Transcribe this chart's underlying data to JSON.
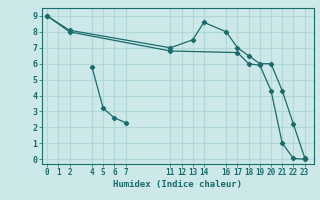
{
  "xlabel": "Humidex (Indice chaleur)",
  "ylabel": "",
  "bg_color": "#cce8e8",
  "grid_color": "#b0d8d8",
  "line_color": "#1a6b6b",
  "xticks": [
    0,
    1,
    2,
    4,
    5,
    6,
    7,
    11,
    12,
    13,
    14,
    16,
    17,
    18,
    19,
    20,
    21,
    22,
    23
  ],
  "yticks": [
    0,
    1,
    2,
    3,
    4,
    5,
    6,
    7,
    8,
    9
  ],
  "xlim": [
    -0.5,
    23.8
  ],
  "ylim": [
    -0.3,
    9.5
  ],
  "lines": [
    {
      "x": [
        0,
        2,
        11,
        13,
        14,
        16,
        17,
        18,
        19,
        20,
        21,
        22,
        23
      ],
      "y": [
        9,
        8.1,
        7.0,
        7.5,
        8.6,
        8.0,
        7.0,
        6.5,
        6.0,
        6.0,
        4.3,
        2.2,
        0.1
      ]
    },
    {
      "x": [
        0,
        2,
        11,
        17,
        18,
        19,
        20,
        21,
        22,
        23
      ],
      "y": [
        9,
        8.0,
        6.8,
        6.7,
        6.0,
        5.9,
        4.3,
        1.0,
        0.05,
        0.0
      ]
    },
    {
      "x": [
        4,
        5,
        6,
        7
      ],
      "y": [
        5.8,
        3.2,
        2.6,
        2.3
      ]
    }
  ]
}
